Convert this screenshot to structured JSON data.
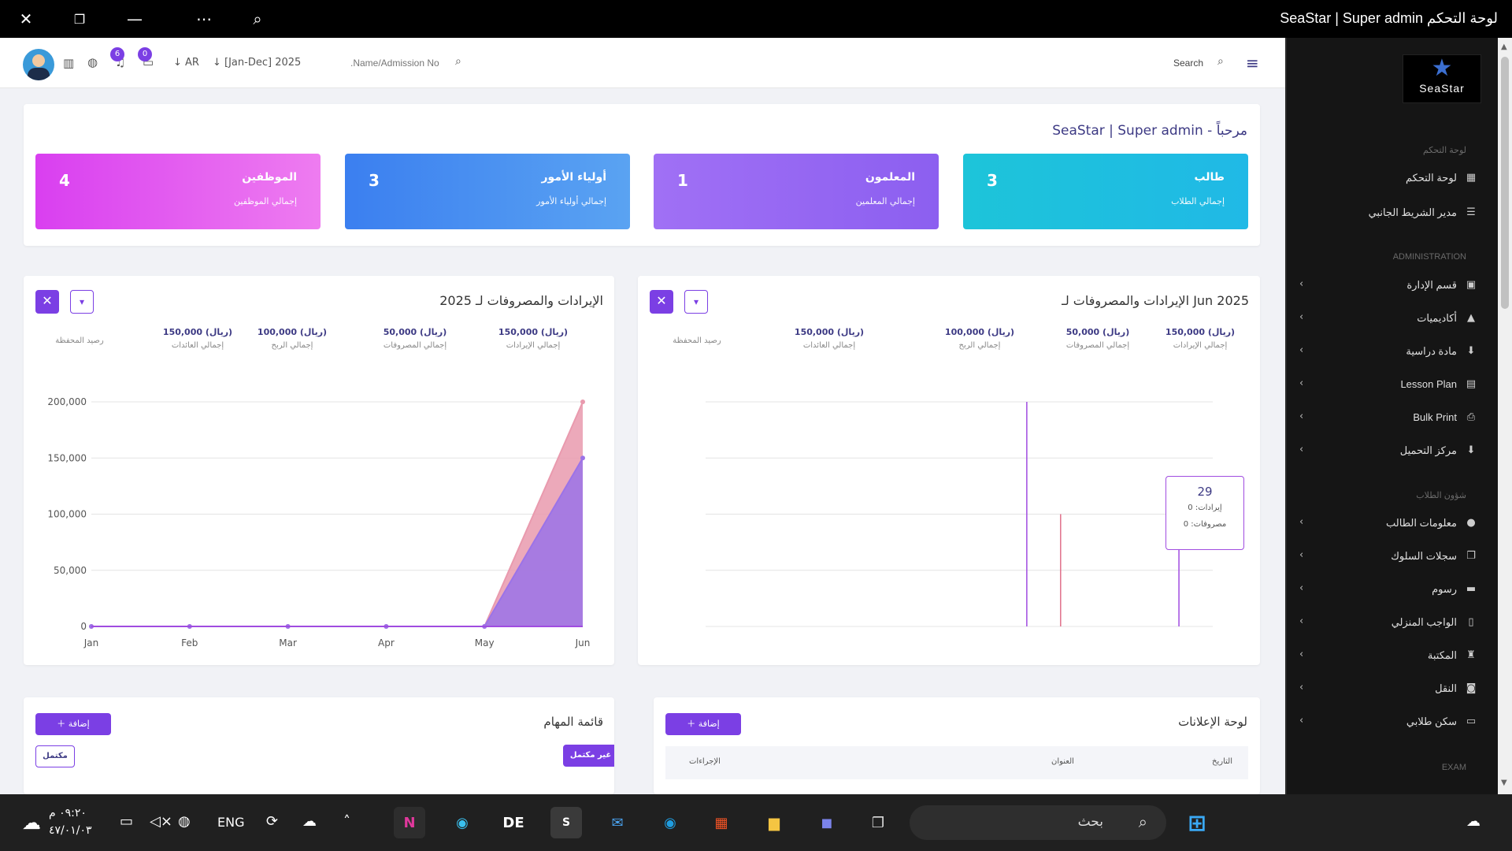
{
  "window": {
    "title": "SeaStar | Super admin لوحة التحكم"
  },
  "topbar": {
    "bell_count": "6",
    "chat_count": "0",
    "lang": "AR",
    "period": "[Jan-Dec] 2025",
    "admission_placeholder": ".Name/Admission No",
    "search_label": "Search"
  },
  "sidebar": {
    "logo_text": "SeaStar",
    "section_dashboard": "لوحة التحكم",
    "section_admin": "ADMINISTRATION",
    "section_students": "شؤون الطلاب",
    "section_exam": "EXAM",
    "items_top": [
      {
        "label": "لوحة التحكم",
        "icon": "grid-icon"
      },
      {
        "label": "مدير الشريط الجانبي",
        "icon": "list-icon"
      }
    ],
    "items_admin": [
      {
        "label": "قسم الإدارة",
        "icon": "admin-icon"
      },
      {
        "label": "أكاديميات",
        "icon": "cap-icon"
      },
      {
        "label": "مادة دراسية",
        "icon": "download-icon"
      },
      {
        "label": "Lesson Plan",
        "icon": "plan-icon"
      },
      {
        "label": "Bulk Print",
        "icon": "printer-icon"
      },
      {
        "label": "مركز التحميل",
        "icon": "download-icon"
      }
    ],
    "items_students": [
      {
        "label": "معلومات الطالب",
        "icon": "user-icon"
      },
      {
        "label": "سجلات السلوك",
        "icon": "copy-icon"
      },
      {
        "label": "رسوم",
        "icon": "money-icon"
      },
      {
        "label": "الواجب المنزلي",
        "icon": "book-icon"
      },
      {
        "label": "المكتبة",
        "icon": "library-icon"
      },
      {
        "label": "النقل",
        "icon": "bus-icon"
      },
      {
        "label": "سكن طلابي",
        "icon": "bed-icon"
      }
    ]
  },
  "welcome": {
    "text": "مرحباً - SeaStar | Super admin"
  },
  "stats": [
    {
      "title": "طالب",
      "subtitle": "إجمالي الطلاب",
      "value": "3",
      "color": "#1dc4d9"
    },
    {
      "title": "المعلمون",
      "subtitle": "إجمالي المعلمين",
      "value": "1",
      "color": "#8c5ff0"
    },
    {
      "title": "أولياء الأمور",
      "subtitle": "إجمالي أولياء الأمور",
      "value": "3",
      "color": "#3f8ef0"
    },
    {
      "title": "الموظفين",
      "subtitle": "إجمالي الموظفين",
      "value": "4",
      "color": "#e044ec"
    }
  ],
  "month_panel": {
    "title": "الإيرادات والمصروفات لـ Jun 2025",
    "summary": [
      {
        "value": "150,000 (ريال)",
        "label": "إجمالي الإيرادات"
      },
      {
        "value": "50,000 (ريال)",
        "label": "إجمالي المصروفات"
      },
      {
        "value": "100,000 (ريال)",
        "label": "إجمالي الربح"
      },
      {
        "value": "150,000 (ريال)",
        "label": "إجمالي العائدات"
      },
      {
        "value": "",
        "label": "رصيد المحفظة"
      }
    ],
    "tooltip": {
      "day": "29",
      "income": "إيرادات: 0",
      "expense": "مصروفات: 0"
    }
  },
  "year_panel": {
    "title": "الإيرادات والمصروفات لـ 2025",
    "summary": [
      {
        "value": "150,000 (ريال)",
        "label": "إجمالي الإيرادات"
      },
      {
        "value": "50,000 (ريال)",
        "label": "إجمالي المصروفات"
      },
      {
        "value": "100,000 (ريال)",
        "label": "إجمالي الربح"
      },
      {
        "value": "150,000 (ريال)",
        "label": "إجمالي العائدات"
      },
      {
        "value": "",
        "label": "رصيد المحفظة"
      }
    ]
  },
  "chart_data": [
    {
      "type": "line",
      "title": "الإيرادات والمصروفات لـ Jun 2025",
      "x_range": [
        1,
        31
      ],
      "ylim": [
        0,
        200000
      ],
      "grid": true,
      "series": [
        {
          "color": "#a04ce0",
          "spikes": [
            {
              "x": 20,
              "y": 200000
            },
            {
              "x": 29,
              "y": 0
            }
          ]
        },
        {
          "color": "#e0708a",
          "spikes": [
            {
              "x": 22,
              "y": 100000
            }
          ]
        }
      ]
    },
    {
      "type": "area",
      "title": "الإيرادات والمصروفات لـ 2025",
      "categories": [
        "Jan",
        "Feb",
        "Mar",
        "Apr",
        "May",
        "Jun"
      ],
      "yticks": [
        "0",
        "50,000",
        "100,000",
        "150,000",
        "200,000"
      ],
      "ylim": [
        0,
        200000
      ],
      "grid": true,
      "series": [
        {
          "values": [
            0,
            0,
            0,
            0,
            0,
            200000
          ],
          "color": "#e99aae"
        },
        {
          "values": [
            0,
            0,
            0,
            0,
            0,
            150000
          ],
          "color": "#9b73e8"
        }
      ]
    }
  ],
  "notice_board": {
    "title": "لوحة الإعلانات",
    "add_label": "إضافة",
    "columns": [
      "التاريخ",
      "العنوان",
      "الإجراءات"
    ]
  },
  "todo": {
    "title": "قائمة المهام",
    "add_label": "إضافة",
    "incomplete_label": "غير مكتمل",
    "complete_label": "مكتمل"
  },
  "taskbar": {
    "time": "٠٩:٢٠ م",
    "date": "٤٧/٠١/٠٣",
    "lang": "ENG",
    "search_placeholder": "بحث"
  }
}
